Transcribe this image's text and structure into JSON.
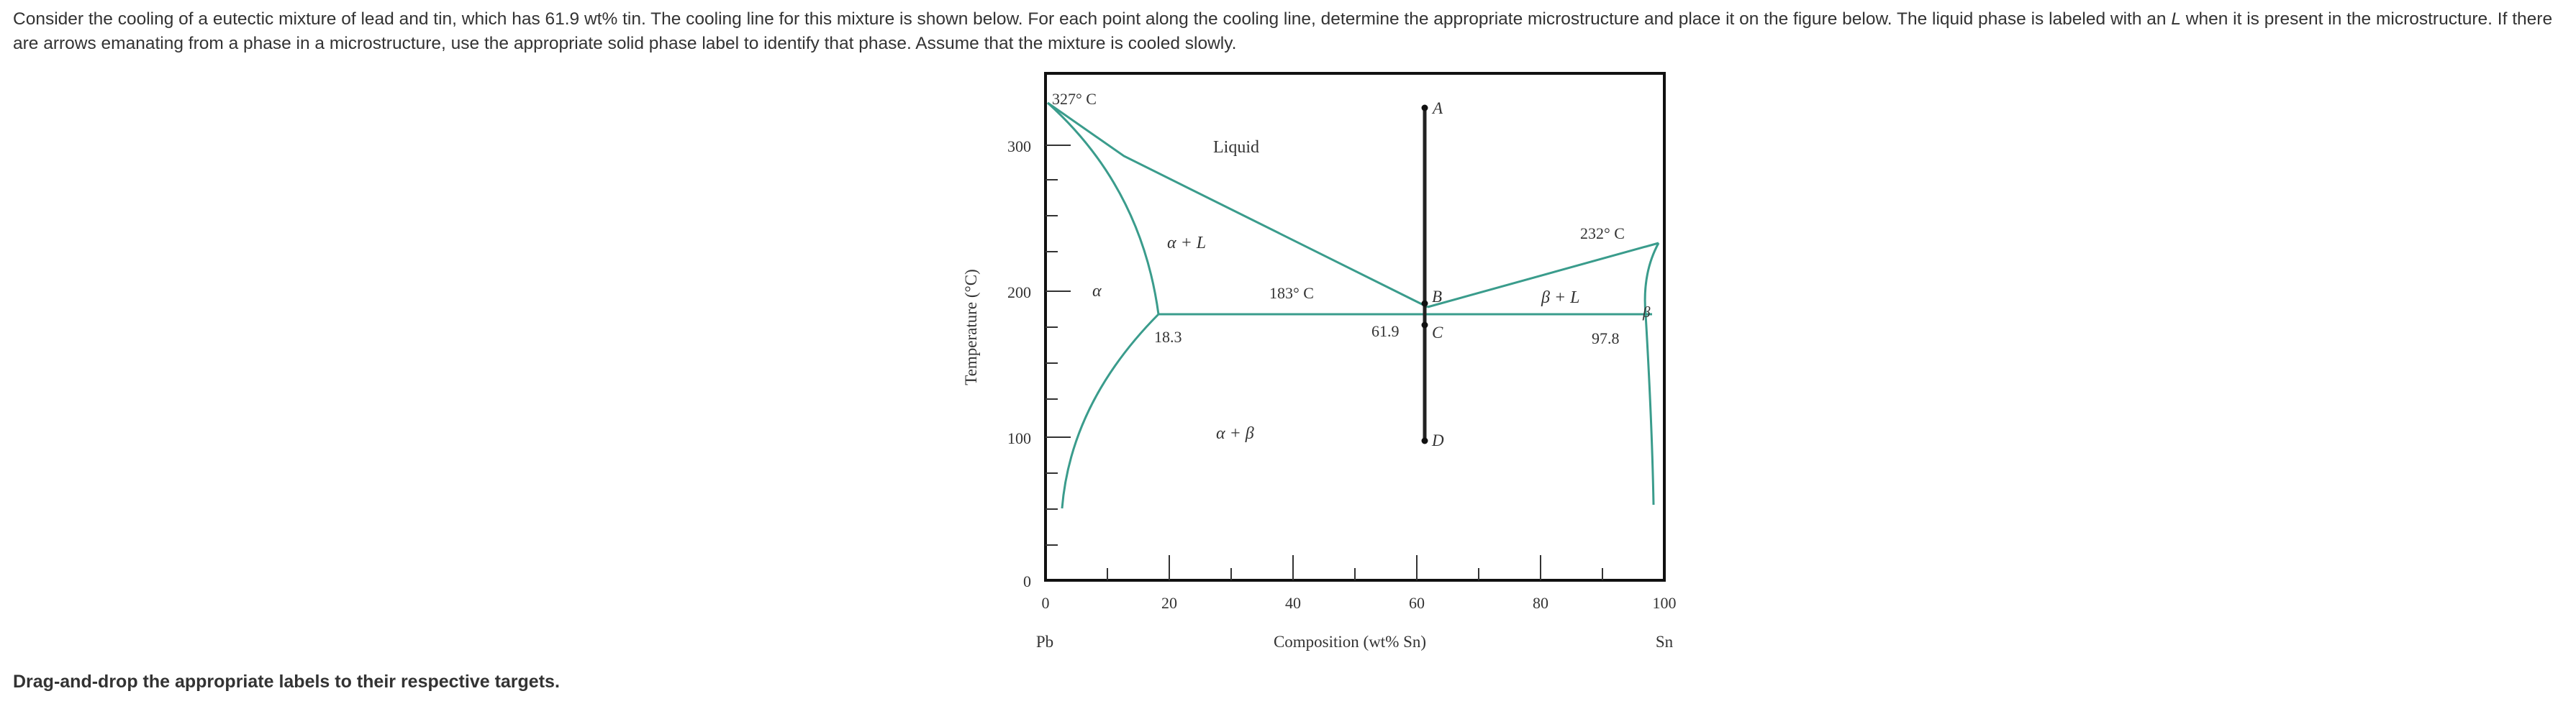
{
  "question": {
    "text_before_L": "Consider the cooling of a eutectic mixture of lead and tin, which has 61.9 wt% tin. The cooling line for this mixture is shown below. For each point along the cooling line, determine the appropriate microstructure and place it on the figure below. The liquid phase is labeled with an ",
    "L_symbol": "L",
    "text_after_L": " when it is present in the microstructure. If there are arrows emanating from a phase in a microstructure, use the appropriate solid phase label to identify that phase. Assume that the mixture is cooled slowly."
  },
  "instructions": "Drag-and-drop the appropriate labels to their respective targets.",
  "diagram": {
    "y_axis_label": "Temperature (°C)",
    "x_axis_label": "Composition (wt% Sn)",
    "y_ticks": [
      "0",
      "100",
      "200",
      "300"
    ],
    "x_ticks": [
      "0",
      "20",
      "40",
      "60",
      "80",
      "100"
    ],
    "left_element": "Pb",
    "right_element": "Sn",
    "pb_melting": "327° C",
    "sn_melting": "232° C",
    "eutectic_temp": "183° C",
    "alpha_limit": "18.3",
    "eutectic_comp": "61.9",
    "beta_limit": "97.8",
    "regions": {
      "liquid": "Liquid",
      "alpha": "α",
      "alpha_liquid": "α + L",
      "beta_liquid": "β + L",
      "beta": "β",
      "alpha_beta": "α + β"
    },
    "points": [
      "A",
      "B",
      "C",
      "D"
    ],
    "line_color": "#3a9c8c",
    "cooling_line_color": "#222222"
  }
}
